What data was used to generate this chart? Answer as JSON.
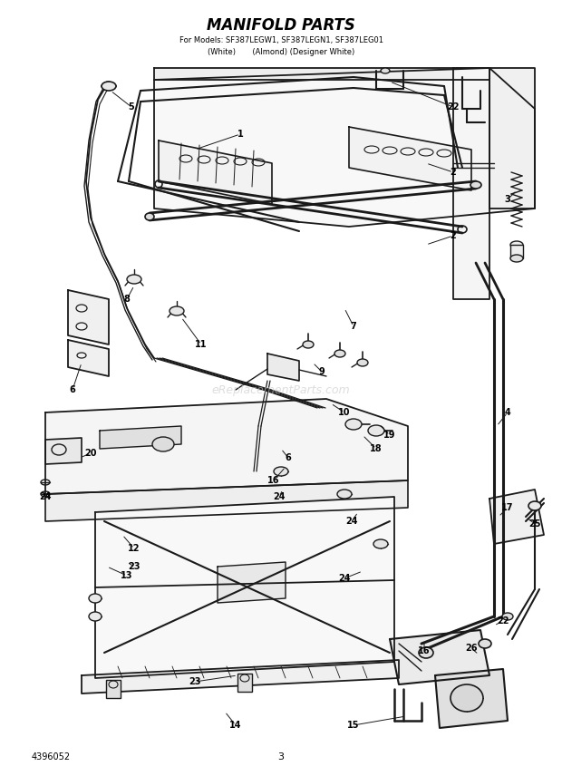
{
  "title": "MANIFOLD PARTS",
  "subtitle1": "For Models: SF387LEGW1, SF387LEGN1, SF387LEG01",
  "subtitle2": "(White)       (Almond) (Designer White)",
  "page_number": "3",
  "part_number": "4396052",
  "bg_color": "#ffffff",
  "line_color": "#1a1a1a",
  "text_color": "#000000",
  "watermark": "eReplacementParts.com",
  "watermark_color": "#c8c8c8",
  "fig_width": 6.2,
  "fig_height": 8.56,
  "dpi": 100
}
